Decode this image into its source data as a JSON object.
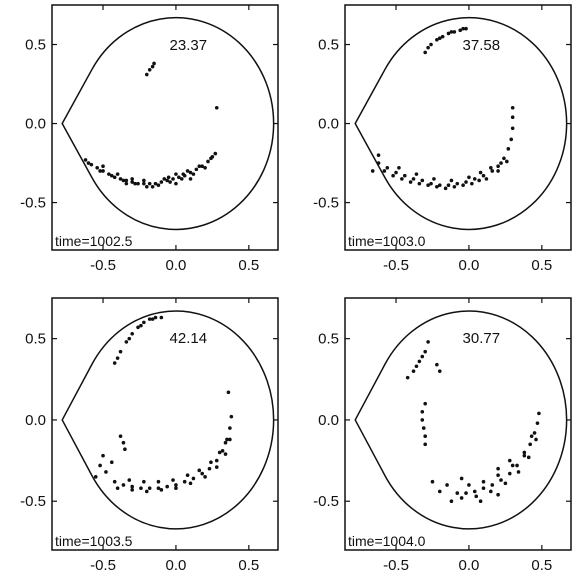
{
  "figure": {
    "panel_count": 4
  },
  "chart_data": [
    {
      "type": "scatter",
      "panel": "top-left",
      "value_label": "23.37",
      "time_label": "time=1002.5",
      "xticks": [
        "-0.5",
        "0.0",
        "0.5"
      ],
      "yticks": [
        "0.5",
        "0.0",
        "-0.5"
      ],
      "xlim": [
        -0.85,
        0.7
      ],
      "ylim": [
        -0.8,
        0.75
      ],
      "boundary": "teardrop",
      "points": [
        [
          -0.62,
          -0.23
        ],
        [
          -0.58,
          -0.26
        ],
        [
          -0.54,
          -0.28
        ],
        [
          -0.5,
          -0.3
        ],
        [
          -0.46,
          -0.32
        ],
        [
          -0.42,
          -0.34
        ],
        [
          -0.38,
          -0.35
        ],
        [
          -0.34,
          -0.36
        ],
        [
          -0.3,
          -0.37
        ],
        [
          -0.26,
          -0.38
        ],
        [
          -0.22,
          -0.38
        ],
        [
          -0.18,
          -0.38
        ],
        [
          -0.14,
          -0.38
        ],
        [
          -0.1,
          -0.37
        ],
        [
          -0.06,
          -0.36
        ],
        [
          -0.02,
          -0.35
        ],
        [
          0.02,
          -0.34
        ],
        [
          0.06,
          -0.33
        ],
        [
          0.1,
          -0.31
        ],
        [
          0.14,
          -0.29
        ],
        [
          0.18,
          -0.27
        ],
        [
          0.22,
          -0.24
        ],
        [
          0.25,
          -0.21
        ],
        [
          0.27,
          -0.19
        ],
        [
          -0.6,
          -0.25
        ],
        [
          -0.52,
          -0.3
        ],
        [
          -0.44,
          -0.33
        ],
        [
          -0.36,
          -0.36
        ],
        [
          -0.28,
          -0.38
        ],
        [
          -0.2,
          -0.4
        ],
        [
          -0.12,
          -0.39
        ],
        [
          -0.04,
          -0.37
        ],
        [
          0.04,
          -0.35
        ],
        [
          0.12,
          -0.32
        ],
        [
          0.2,
          -0.28
        ],
        [
          -0.5,
          -0.27
        ],
        [
          -0.4,
          -0.32
        ],
        [
          -0.3,
          -0.35
        ],
        [
          -0.22,
          -0.36
        ],
        [
          -0.08,
          -0.35
        ],
        [
          0.0,
          -0.32
        ],
        [
          0.08,
          -0.3
        ],
        [
          0.16,
          -0.27
        ],
        [
          0.24,
          -0.22
        ],
        [
          -0.34,
          -0.38
        ],
        [
          -0.16,
          -0.4
        ],
        [
          0.0,
          -0.38
        ],
        [
          0.1,
          -0.35
        ],
        [
          0.05,
          -0.32
        ],
        [
          -0.05,
          -0.34
        ],
        [
          -0.15,
          0.38
        ],
        [
          -0.18,
          0.34
        ],
        [
          -0.2,
          0.31
        ],
        [
          -0.16,
          0.36
        ],
        [
          0.28,
          0.1
        ]
      ]
    },
    {
      "type": "scatter",
      "panel": "top-right",
      "value_label": "37.58",
      "time_label": "time=1003.0",
      "xticks": [
        "-0.5",
        "0.0",
        "0.5"
      ],
      "yticks": [
        "0.5",
        "0.0",
        "-0.5"
      ],
      "xlim": [
        -0.85,
        0.7
      ],
      "ylim": [
        -0.8,
        0.75
      ],
      "boundary": "teardrop",
      "points": [
        [
          -0.62,
          -0.25
        ],
        [
          -0.56,
          -0.28
        ],
        [
          -0.5,
          -0.31
        ],
        [
          -0.44,
          -0.33
        ],
        [
          -0.38,
          -0.35
        ],
        [
          -0.32,
          -0.36
        ],
        [
          -0.26,
          -0.38
        ],
        [
          -0.2,
          -0.39
        ],
        [
          -0.14,
          -0.39
        ],
        [
          -0.08,
          -0.38
        ],
        [
          -0.02,
          -0.37
        ],
        [
          0.04,
          -0.35
        ],
        [
          0.1,
          -0.33
        ],
        [
          0.16,
          -0.3
        ],
        [
          0.2,
          -0.27
        ],
        [
          0.24,
          -0.22
        ],
        [
          0.27,
          -0.16
        ],
        [
          0.29,
          -0.1
        ],
        [
          0.3,
          -0.03
        ],
        [
          0.3,
          0.04
        ],
        [
          0.3,
          0.1
        ],
        [
          -0.58,
          -0.3
        ],
        [
          -0.46,
          -0.35
        ],
        [
          -0.34,
          -0.38
        ],
        [
          -0.22,
          -0.4
        ],
        [
          -0.1,
          -0.4
        ],
        [
          0.02,
          -0.38
        ],
        [
          0.12,
          -0.35
        ],
        [
          0.2,
          -0.3
        ],
        [
          0.26,
          -0.24
        ],
        [
          -0.48,
          -0.28
        ],
        [
          -0.36,
          -0.32
        ],
        [
          -0.24,
          -0.35
        ],
        [
          -0.12,
          -0.36
        ],
        [
          0.0,
          -0.34
        ],
        [
          0.08,
          -0.31
        ],
        [
          0.15,
          -0.28
        ],
        [
          0.22,
          -0.25
        ],
        [
          -0.52,
          -0.33
        ],
        [
          -0.4,
          -0.37
        ],
        [
          -0.28,
          -0.39
        ],
        [
          -0.16,
          -0.41
        ],
        [
          -0.04,
          -0.39
        ],
        [
          0.07,
          -0.36
        ],
        [
          -0.62,
          -0.2
        ],
        [
          -0.66,
          -0.3
        ],
        [
          -0.3,
          0.45
        ],
        [
          -0.26,
          0.5
        ],
        [
          -0.22,
          0.53
        ],
        [
          -0.18,
          0.55
        ],
        [
          -0.14,
          0.57
        ],
        [
          -0.1,
          0.58
        ],
        [
          -0.06,
          0.59
        ],
        [
          -0.02,
          0.6
        ],
        [
          -0.28,
          0.48
        ],
        [
          -0.2,
          0.54
        ],
        [
          -0.12,
          0.58
        ],
        [
          -0.04,
          0.6
        ]
      ]
    },
    {
      "type": "scatter",
      "panel": "bottom-left",
      "value_label": "42.14",
      "time_label": "time=1003.5",
      "xticks": [
        "-0.5",
        "0.0",
        "0.5"
      ],
      "yticks": [
        "0.5",
        "0.0",
        "-0.5"
      ],
      "xlim": [
        -0.85,
        0.7
      ],
      "ylim": [
        -0.8,
        0.75
      ],
      "boundary": "teardrop",
      "points": [
        [
          -0.42,
          -0.38
        ],
        [
          -0.36,
          -0.4
        ],
        [
          -0.3,
          -0.41
        ],
        [
          -0.24,
          -0.42
        ],
        [
          -0.18,
          -0.42
        ],
        [
          -0.12,
          -0.42
        ],
        [
          -0.06,
          -0.41
        ],
        [
          0.0,
          -0.4
        ],
        [
          0.06,
          -0.38
        ],
        [
          0.12,
          -0.36
        ],
        [
          0.18,
          -0.33
        ],
        [
          0.23,
          -0.3
        ],
        [
          0.28,
          -0.25
        ],
        [
          0.32,
          -0.19
        ],
        [
          0.35,
          -0.12
        ],
        [
          0.37,
          -0.05
        ],
        [
          0.38,
          0.02
        ],
        [
          -0.4,
          -0.42
        ],
        [
          -0.3,
          -0.43
        ],
        [
          -0.2,
          -0.44
        ],
        [
          -0.1,
          -0.43
        ],
        [
          0.0,
          -0.42
        ],
        [
          0.1,
          -0.39
        ],
        [
          0.2,
          -0.35
        ],
        [
          0.28,
          -0.29
        ],
        [
          0.34,
          -0.21
        ],
        [
          0.37,
          -0.12
        ],
        [
          -0.32,
          -0.37
        ],
        [
          -0.22,
          -0.38
        ],
        [
          -0.12,
          -0.38
        ],
        [
          -0.02,
          -0.37
        ],
        [
          0.08,
          -0.34
        ],
        [
          0.16,
          -0.31
        ],
        [
          0.24,
          -0.26
        ],
        [
          0.3,
          -0.2
        ],
        [
          0.34,
          -0.14
        ],
        [
          -0.52,
          -0.28
        ],
        [
          -0.48,
          -0.32
        ],
        [
          -0.55,
          -0.35
        ],
        [
          -0.44,
          -0.26
        ],
        [
          -0.5,
          -0.22
        ],
        [
          -0.38,
          -0.1
        ],
        [
          -0.36,
          -0.14
        ],
        [
          -0.35,
          -0.18
        ],
        [
          -0.42,
          0.35
        ],
        [
          -0.38,
          0.42
        ],
        [
          -0.34,
          0.48
        ],
        [
          -0.3,
          0.53
        ],
        [
          -0.26,
          0.57
        ],
        [
          -0.22,
          0.6
        ],
        [
          -0.18,
          0.62
        ],
        [
          -0.14,
          0.63
        ],
        [
          -0.1,
          0.63
        ],
        [
          -0.4,
          0.38
        ],
        [
          -0.32,
          0.5
        ],
        [
          -0.24,
          0.58
        ],
        [
          -0.16,
          0.62
        ],
        [
          0.36,
          0.17
        ]
      ]
    },
    {
      "type": "scatter",
      "panel": "bottom-right",
      "value_label": "30.77",
      "time_label": "time=1004.0",
      "xticks": [
        "-0.5",
        "0.0",
        "0.5"
      ],
      "yticks": [
        "0.5",
        "0.0",
        "-0.5"
      ],
      "xlim": [
        -0.85,
        0.7
      ],
      "ylim": [
        -0.8,
        0.75
      ],
      "boundary": "teardrop",
      "points": [
        [
          -0.08,
          -0.45
        ],
        [
          -0.02,
          -0.45
        ],
        [
          0.04,
          -0.44
        ],
        [
          0.1,
          -0.42
        ],
        [
          0.16,
          -0.4
        ],
        [
          0.22,
          -0.37
        ],
        [
          0.28,
          -0.33
        ],
        [
          0.33,
          -0.28
        ],
        [
          0.38,
          -0.22
        ],
        [
          0.42,
          -0.15
        ],
        [
          0.45,
          -0.08
        ],
        [
          0.47,
          -0.02
        ],
        [
          0.48,
          0.04
        ],
        [
          -0.05,
          -0.48
        ],
        [
          0.05,
          -0.47
        ],
        [
          0.15,
          -0.44
        ],
        [
          0.25,
          -0.39
        ],
        [
          0.34,
          -0.32
        ],
        [
          0.41,
          -0.23
        ],
        [
          0.46,
          -0.12
        ],
        [
          0.0,
          -0.4
        ],
        [
          0.1,
          -0.38
        ],
        [
          0.2,
          -0.34
        ],
        [
          0.3,
          -0.28
        ],
        [
          0.38,
          -0.2
        ],
        [
          0.43,
          -0.1
        ],
        [
          -0.15,
          -0.4
        ],
        [
          -0.2,
          -0.44
        ],
        [
          -0.12,
          -0.5
        ],
        [
          -0.25,
          -0.38
        ],
        [
          0.08,
          -0.5
        ],
        [
          0.2,
          -0.46
        ],
        [
          -0.3,
          -0.1
        ],
        [
          -0.31,
          -0.05
        ],
        [
          -0.32,
          0.0
        ],
        [
          -0.32,
          0.05
        ],
        [
          -0.3,
          -0.15
        ],
        [
          -0.3,
          0.1
        ],
        [
          -0.38,
          0.3
        ],
        [
          -0.34,
          0.36
        ],
        [
          -0.3,
          0.42
        ],
        [
          -0.36,
          0.33
        ],
        [
          -0.32,
          0.39
        ],
        [
          -0.28,
          0.48
        ],
        [
          -0.42,
          0.26
        ],
        [
          -0.2,
          0.3
        ],
        [
          -0.22,
          0.34
        ],
        [
          0.2,
          -0.3
        ],
        [
          0.28,
          -0.25
        ],
        [
          -0.05,
          -0.36
        ]
      ]
    }
  ]
}
